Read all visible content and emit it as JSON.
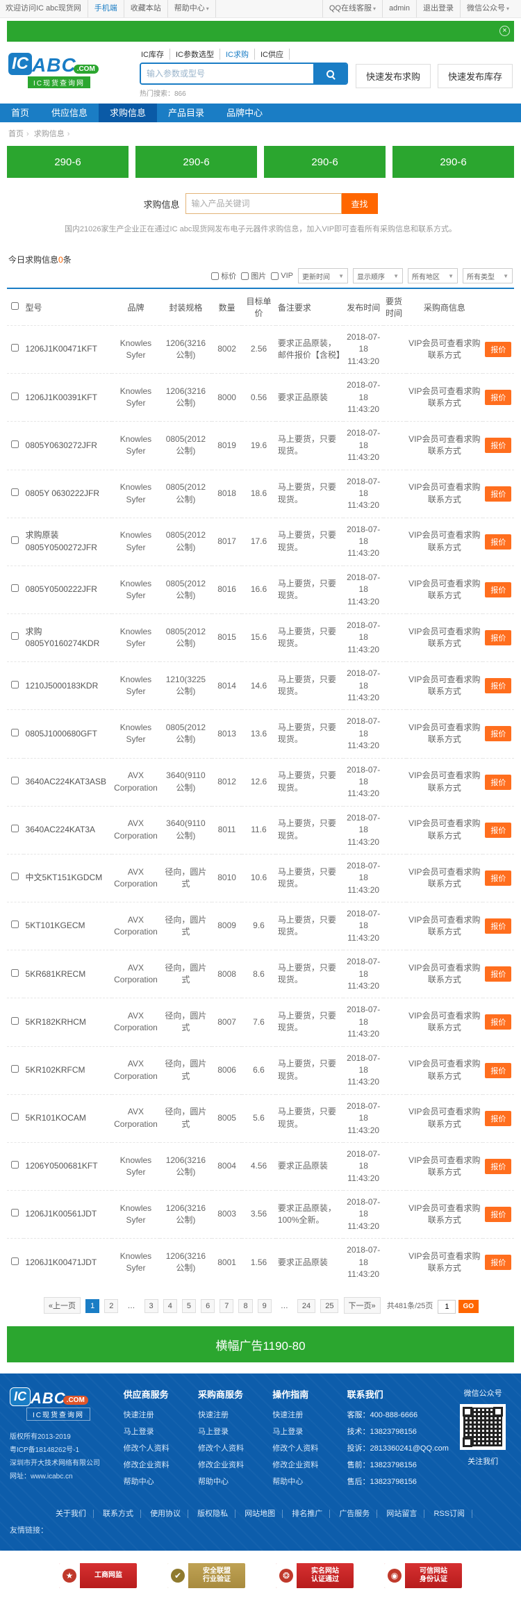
{
  "colors": {
    "green": "#2ba62f",
    "blue": "#1a7dc5",
    "blue_dark": "#0a5aa6",
    "orange": "#ff6600",
    "footer_blue": "#0d5dab"
  },
  "icons": {
    "close": "×",
    "caret_down": "▼",
    "crumb_sep": "›",
    "badge_star": "★",
    "badge_check": "✔",
    "badge_seal": "❂",
    "badge_swirl": "◉"
  },
  "topbar": {
    "welcome": "欢迎访问IC abc现货网",
    "left_links": [
      {
        "label": "手机端",
        "cls": "hl"
      },
      {
        "label": "收藏本站"
      },
      {
        "label": "帮助中心",
        "caret": true
      }
    ],
    "right_links": [
      {
        "label": "QQ在线客服",
        "caret": true
      },
      {
        "label": "admin"
      },
      {
        "label": "退出登录"
      },
      {
        "label": "微信公众号",
        "caret": true
      }
    ]
  },
  "header": {
    "logo": {
      "ic": "IC",
      "abc": "ABC",
      "com": ".COM",
      "tagline": "IC现货查询网"
    },
    "search_tabs": [
      {
        "label": "IC库存"
      },
      {
        "label": "IC参数选型"
      },
      {
        "label": "IC求购",
        "cls": "active"
      },
      {
        "label": "IC供应"
      }
    ],
    "search_placeholder": "输入参数或型号",
    "hot_search": "热门搜索：866",
    "quick_buttons": [
      "快速发布求购",
      "快速发布库存"
    ]
  },
  "nav": [
    {
      "label": "首页"
    },
    {
      "label": "供应信息"
    },
    {
      "label": "求购信息",
      "cls": "active"
    },
    {
      "label": "产品目录"
    },
    {
      "label": "品牌中心"
    }
  ],
  "breadcrumb": {
    "items": [
      "首页",
      "求购信息"
    ]
  },
  "ad_banners": [
    "290-6",
    "290-6",
    "290-6",
    "290-6"
  ],
  "inquiry": {
    "label": "求购信息",
    "placeholder": "输入产品关键词",
    "button": "查找",
    "description": "国内21026家生产企业正在通过IC abc现货网发布电子元器件求购信息，加入VIP即可查看所有采购信息和联系方式。"
  },
  "today": {
    "prefix": "今日求购信息",
    "count": "0",
    "suffix": "条"
  },
  "filters": {
    "checkboxes": [
      "标价",
      "图片",
      "VIP"
    ],
    "selects": [
      "更新时间",
      "显示顺序",
      "所有地区",
      "所有类型"
    ]
  },
  "table": {
    "headers": {
      "model": "型号",
      "brand": "品牌",
      "pkg": "封装规格",
      "qty": "数量",
      "price": "目标单价",
      "remark": "备注要求",
      "pub": "发布时间",
      "need": "要货时间",
      "buyer": "采购商信息"
    },
    "quote_label": "报价",
    "rows": [
      {
        "model": "1206J1K00471KFT",
        "brand": "Knowles Syfer",
        "pkg": "1206(3216 公制)",
        "qty": "8002",
        "price": "2.56",
        "remark": "要求正品原装，邮件报价【含税】",
        "pub": "2018-07-18 11:43:20",
        "need": "",
        "buyer": "VIP会员可查看求购联系方式"
      },
      {
        "model": "1206J1K00391KFT",
        "brand": "Knowles Syfer",
        "pkg": "1206(3216 公制)",
        "qty": "8000",
        "price": "0.56",
        "remark": "要求正品原装",
        "pub": "2018-07-18 11:43:20",
        "need": "",
        "buyer": "VIP会员可查看求购联系方式"
      },
      {
        "model": "0805Y0630272JFR",
        "brand": "Knowles Syfer",
        "pkg": "0805(2012 公制)",
        "qty": "8019",
        "price": "19.6",
        "remark": "马上要货，只要现货。",
        "pub": "2018-07-18 11:43:20",
        "need": "",
        "buyer": "VIP会员可查看求购联系方式"
      },
      {
        "model": "0805Y 0630222JFR",
        "brand": "Knowles Syfer",
        "pkg": "0805(2012 公制)",
        "qty": "8018",
        "price": "18.6",
        "remark": "马上要货，只要现货。",
        "pub": "2018-07-18 11:43:20",
        "need": "",
        "buyer": "VIP会员可查看求购联系方式"
      },
      {
        "model": "求购原装 0805Y0500272JFR",
        "brand": "Knowles Syfer",
        "pkg": "0805(2012 公制)",
        "qty": "8017",
        "price": "17.6",
        "remark": "马上要货，只要现货。",
        "pub": "2018-07-18 11:43:20",
        "need": "",
        "buyer": "VIP会员可查看求购联系方式"
      },
      {
        "model": "0805Y0500222JFR",
        "brand": "Knowles Syfer",
        "pkg": "0805(2012 公制)",
        "qty": "8016",
        "price": "16.6",
        "remark": "马上要货，只要现货。",
        "pub": "2018-07-18 11:43:20",
        "need": "",
        "buyer": "VIP会员可查看求购联系方式"
      },
      {
        "model": "求购 0805Y0160274KDR",
        "brand": "Knowles Syfer",
        "pkg": "0805(2012 公制)",
        "qty": "8015",
        "price": "15.6",
        "remark": "马上要货，只要现货。",
        "pub": "2018-07-18 11:43:20",
        "need": "",
        "buyer": "VIP会员可查看求购联系方式"
      },
      {
        "model": "1210J5000183KDR",
        "brand": "Knowles Syfer",
        "pkg": "1210(3225 公制)",
        "qty": "8014",
        "price": "14.6",
        "remark": "马上要货，只要现货。",
        "pub": "2018-07-18 11:43:20",
        "need": "",
        "buyer": "VIP会员可查看求购联系方式"
      },
      {
        "model": "0805J1000680GFT",
        "brand": "Knowles Syfer",
        "pkg": "0805(2012 公制)",
        "qty": "8013",
        "price": "13.6",
        "remark": "马上要货，只要现货。",
        "pub": "2018-07-18 11:43:20",
        "need": "",
        "buyer": "VIP会员可查看求购联系方式"
      },
      {
        "model": "3640AC224KAT3ASB",
        "brand": "AVX Corporation",
        "pkg": "3640(9110 公制)",
        "qty": "8012",
        "price": "12.6",
        "remark": "马上要货，只要现货。",
        "pub": "2018-07-18 11:43:20",
        "need": "",
        "buyer": "VIP会员可查看求购联系方式"
      },
      {
        "model": "3640AC224KAT3A",
        "brand": "AVX Corporation",
        "pkg": "3640(9110 公制)",
        "qty": "8011",
        "price": "11.6",
        "remark": "马上要货，只要现货。",
        "pub": "2018-07-18 11:43:20",
        "need": "",
        "buyer": "VIP会员可查看求购联系方式"
      },
      {
        "model": "中文5KT151KGDCM",
        "brand": "AVX Corporation",
        "pkg": "径向，圆片式",
        "qty": "8010",
        "price": "10.6",
        "remark": "马上要货，只要现货。",
        "pub": "2018-07-18 11:43:20",
        "need": "",
        "buyer": "VIP会员可查看求购联系方式"
      },
      {
        "model": "5KT101KGECM",
        "brand": "AVX Corporation",
        "pkg": "径向，圆片式",
        "qty": "8009",
        "price": "9.6",
        "remark": "马上要货，只要现货。",
        "pub": "2018-07-18 11:43:20",
        "need": "",
        "buyer": "VIP会员可查看求购联系方式"
      },
      {
        "model": "5KR681KRECM",
        "brand": "AVX Corporation",
        "pkg": "径向，圆片式",
        "qty": "8008",
        "price": "8.6",
        "remark": "马上要货，只要现货。",
        "pub": "2018-07-18 11:43:20",
        "need": "",
        "buyer": "VIP会员可查看求购联系方式"
      },
      {
        "model": "5KR182KRHCM",
        "brand": "AVX Corporation",
        "pkg": "径向，圆片式",
        "qty": "8007",
        "price": "7.6",
        "remark": "马上要货，只要现货。",
        "pub": "2018-07-18 11:43:20",
        "need": "",
        "buyer": "VIP会员可查看求购联系方式"
      },
      {
        "model": "5KR102KRFCM",
        "brand": "AVX Corporation",
        "pkg": "径向，圆片式",
        "qty": "8006",
        "price": "6.6",
        "remark": "马上要货，只要现货。",
        "pub": "2018-07-18 11:43:20",
        "need": "",
        "buyer": "VIP会员可查看求购联系方式"
      },
      {
        "model": "5KR101KOCAM",
        "brand": "AVX Corporation",
        "pkg": "径向，圆片式",
        "qty": "8005",
        "price": "5.6",
        "remark": "马上要货，只要现货。",
        "pub": "2018-07-18 11:43:20",
        "need": "",
        "buyer": "VIP会员可查看求购联系方式"
      },
      {
        "model": "1206Y0500681KFT",
        "brand": "Knowles Syfer",
        "pkg": "1206(3216 公制)",
        "qty": "8004",
        "price": "4.56",
        "remark": "要求正品原装",
        "pub": "2018-07-18 11:43:20",
        "need": "",
        "buyer": "VIP会员可查看求购联系方式"
      },
      {
        "model": "1206J1K00561JDT",
        "brand": "Knowles Syfer",
        "pkg": "1206(3216 公制)",
        "qty": "8003",
        "price": "3.56",
        "remark": "要求正品原装，100%全新。",
        "pub": "2018-07-18 11:43:20",
        "need": "",
        "buyer": "VIP会员可查看求购联系方式"
      },
      {
        "model": "1206J1K00471JDT",
        "brand": "Knowles Syfer",
        "pkg": "1206(3216 公制)",
        "qty": "8001",
        "price": "1.56",
        "remark": "要求正品原装",
        "pub": "2018-07-18 11:43:20",
        "need": "",
        "buyer": "VIP会员可查看求购联系方式"
      }
    ]
  },
  "pagination": {
    "items": [
      {
        "label": "«上一页"
      },
      {
        "label": "1",
        "cls": "active"
      },
      {
        "label": "2"
      },
      {
        "label": "…",
        "cls": "dots"
      },
      {
        "label": "3"
      },
      {
        "label": "4"
      },
      {
        "label": "5"
      },
      {
        "label": "6"
      },
      {
        "label": "7"
      },
      {
        "label": "8"
      },
      {
        "label": "9"
      },
      {
        "label": "…",
        "cls": "dots"
      },
      {
        "label": "24"
      },
      {
        "label": "25"
      },
      {
        "label": "下一页»"
      }
    ],
    "total": "共481条/25页",
    "jump_value": "1",
    "go": "GO"
  },
  "bottom_banner": "横幅广告1190-80",
  "footer": {
    "columns": [
      {
        "title": "供应商服务",
        "links": [
          "快速注册",
          "马上登录",
          "修改个人资料",
          "修改企业资料",
          "帮助中心"
        ]
      },
      {
        "title": "采购商服务",
        "links": [
          "快速注册",
          "马上登录",
          "修改个人资料",
          "修改企业资料",
          "帮助中心"
        ]
      },
      {
        "title": "操作指南",
        "links": [
          "快速注册",
          "马上登录",
          "修改个人资料",
          "修改企业资料",
          "帮助中心"
        ]
      }
    ],
    "contact": {
      "title": "联系我们",
      "lines": [
        "客服：400-888-6666",
        "技术：13823798156",
        "投诉：2813360241@QQ.com",
        "售前：13823798156",
        "售后：13823798156"
      ]
    },
    "copyright": [
      "版权所有2013-2019",
      "粤ICP备18148262号-1",
      "深圳市开大技术网络有限公司",
      "网址：www.icabc.cn"
    ],
    "wechat": {
      "top": "微信公众号",
      "bottom": "关注我们"
    },
    "bottom_links": [
      "关于我们",
      "联系方式",
      "使用协议",
      "版权隐私",
      "网站地图",
      "排名推广",
      "广告服务",
      "网站留言",
      "RSS订阅"
    ],
    "friend_links": "友情链接："
  },
  "badges": [
    {
      "line1": "工商网监",
      "line2": "",
      "cls": "red",
      "icon": "★"
    },
    {
      "line1": "安全联盟",
      "line2": "行业验证",
      "cls": "gold",
      "icon": "✔"
    },
    {
      "line1": "实名网站",
      "line2": "认证通过",
      "cls": "red",
      "icon": "❂"
    },
    {
      "line1": "可信网站",
      "line2": "身份认证",
      "cls": "red",
      "icon": "◉"
    }
  ]
}
